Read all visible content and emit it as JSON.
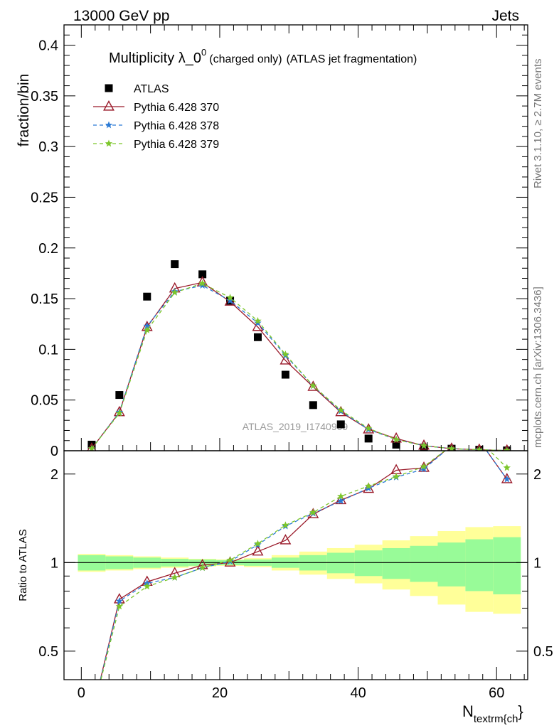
{
  "header": {
    "left": "13000 GeV pp",
    "right": "Jets"
  },
  "title": {
    "main": "Multiplicity λ_0",
    "sup": "0",
    "small": "(charged only)",
    "tail": "(ATLAS jet fragmentation)"
  },
  "side_labels": {
    "rivet": "Rivet 3.1.10, ≥ 2.7M events",
    "mcplots": "mcplots.cern.ch [arXiv:1306.3436]"
  },
  "watermark": "ATLAS_2019_I1740909",
  "colors": {
    "atlas": "#000000",
    "p370": "#9a1a2a",
    "p378": "#2a7ad5",
    "p379": "#7cc62a",
    "band_inner": "#98fb98",
    "band_outer": "#ffff99"
  },
  "chart_data": [
    {
      "type": "line",
      "panel": "main",
      "ylabel": "fraction/bin",
      "xlim": [
        -2.5,
        64.5
      ],
      "ylim": [
        0,
        0.42
      ],
      "y_ticks": [
        "0",
        "0.05",
        "0.1",
        "0.15",
        "0.2",
        "0.25",
        "0.3",
        "0.35",
        "0.4"
      ],
      "x": [
        1.5,
        5.5,
        9.5,
        13.5,
        17.5,
        21.5,
        25.5,
        29.5,
        33.5,
        37.5,
        41.5,
        45.5,
        49.5,
        53.5,
        57.5,
        61.5
      ],
      "series": [
        {
          "name": "ATLAS",
          "marker": "square",
          "values": [
            0.006,
            0.055,
            0.152,
            0.184,
            0.174,
            0.148,
            0.112,
            0.075,
            0.045,
            0.026,
            0.012,
            0.006,
            0.003,
            0.002,
            0.001,
            0.0003
          ]
        },
        {
          "name": "Pythia 6.428 370",
          "marker": "triangle",
          "values": [
            0.002,
            0.038,
            0.122,
            0.16,
            0.166,
            0.147,
            0.122,
            0.089,
            0.063,
            0.038,
            0.021,
            0.012,
            0.005,
            0.002,
            0.001,
            0.0002
          ]
        },
        {
          "name": "Pythia 6.428 378",
          "marker": "star",
          "values": [
            0.002,
            0.038,
            0.123,
            0.157,
            0.163,
            0.148,
            0.126,
            0.094,
            0.064,
            0.039,
            0.021,
            0.011,
            0.005,
            0.002,
            0.001,
            0.0002
          ]
        },
        {
          "name": "Pythia 6.428 379",
          "marker": "star",
          "values": [
            0.002,
            0.037,
            0.119,
            0.156,
            0.165,
            0.151,
            0.128,
            0.095,
            0.064,
            0.04,
            0.022,
            0.011,
            0.005,
            0.002,
            0.001,
            0.0002
          ]
        }
      ]
    },
    {
      "type": "line",
      "panel": "ratio",
      "ylabel": "Ratio to ATLAS",
      "xlabel_main": "N",
      "xlabel_sub": "textrm{ch",
      "xlabel_close": "}",
      "xlim": [
        -2.5,
        64.5
      ],
      "ylim": [
        0.4,
        2.4
      ],
      "y_tick_labels": [
        {
          "value": 0.5,
          "label": "0.5"
        },
        {
          "value": 1,
          "label": "1"
        },
        {
          "value": 2,
          "label": "2"
        }
      ],
      "x_tick_labels": [
        {
          "value": 0,
          "label": "0"
        },
        {
          "value": 20,
          "label": "20"
        },
        {
          "value": 40,
          "label": "40"
        },
        {
          "value": 60,
          "label": "60"
        }
      ],
      "bands": {
        "edges": [
          -0.5,
          3.5,
          7.5,
          11.5,
          15.5,
          19.5,
          23.5,
          27.5,
          31.5,
          35.5,
          39.5,
          43.5,
          47.5,
          51.5,
          55.5,
          59.5,
          63.5
        ],
        "inner": [
          0.06,
          0.05,
          0.04,
          0.03,
          0.025,
          0.02,
          0.025,
          0.04,
          0.06,
          0.08,
          0.1,
          0.12,
          0.14,
          0.17,
          0.2,
          0.22
        ],
        "outer": [
          0.07,
          0.06,
          0.05,
          0.04,
          0.03,
          0.025,
          0.035,
          0.06,
          0.09,
          0.12,
          0.15,
          0.19,
          0.23,
          0.28,
          0.32,
          0.33
        ]
      },
      "x": [
        1.5,
        5.5,
        9.5,
        13.5,
        17.5,
        21.5,
        25.5,
        29.5,
        33.5,
        37.5,
        41.5,
        45.5,
        49.5,
        53.5,
        57.5,
        61.5
      ],
      "series": [
        {
          "name": "Pythia 6.428 370",
          "marker": "triangle",
          "values": [
            0.3,
            0.75,
            0.86,
            0.92,
            0.98,
            1.0,
            1.09,
            1.19,
            1.46,
            1.63,
            1.78,
            2.06,
            2.1,
            2.5,
            2.6,
            1.92
          ]
        },
        {
          "name": "Pythia 6.428 378",
          "marker": "star",
          "values": [
            0.3,
            0.74,
            0.85,
            0.89,
            0.96,
            1.01,
            1.15,
            1.33,
            1.47,
            1.62,
            1.79,
            1.95,
            2.08,
            2.5,
            2.6,
            1.92
          ]
        },
        {
          "name": "Pythia 6.428 379",
          "marker": "star",
          "values": [
            0.3,
            0.71,
            0.83,
            0.89,
            0.96,
            1.02,
            1.16,
            1.34,
            1.48,
            1.68,
            1.82,
            1.96,
            2.12,
            2.5,
            2.6,
            2.1
          ]
        }
      ]
    }
  ]
}
